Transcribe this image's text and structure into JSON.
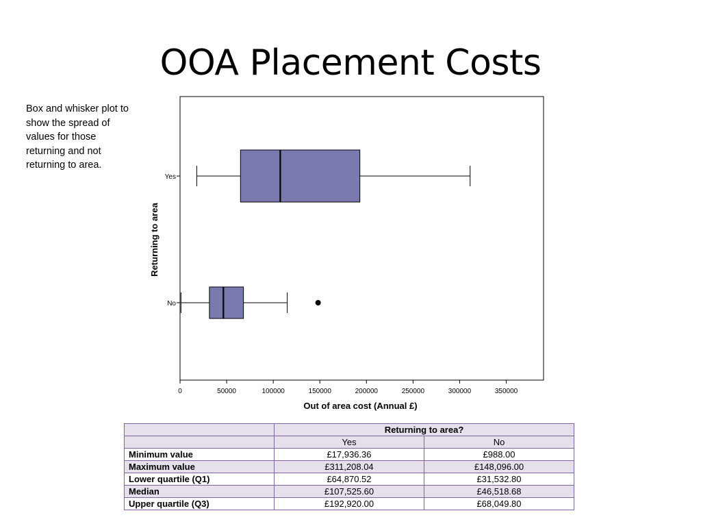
{
  "title": "OOA Placement Costs",
  "caption": "Box and whisker plot to show the spread of values for those returning and not returning to area.",
  "chart_data": {
    "type": "boxplot",
    "orientation": "horizontal",
    "xlabel": "Out of area cost (Annual £)",
    "ylabel": "Returning to area",
    "xlim": [
      0,
      390000
    ],
    "xticks": [
      0,
      50000,
      100000,
      150000,
      200000,
      250000,
      300000,
      350000
    ],
    "xtick_labels": [
      "0",
      "50000",
      "100000",
      "150000",
      "200000",
      "250000",
      "300000",
      "350000"
    ],
    "categories": [
      "Yes",
      "No"
    ],
    "boxes": [
      {
        "category": "Yes",
        "min": 17936.36,
        "q1": 64870.52,
        "median": 107525.6,
        "q3": 192920.0,
        "max": 311208.04,
        "outliers": []
      },
      {
        "category": "No",
        "min": 988.0,
        "q1": 31532.8,
        "median": 46518.68,
        "q3": 68049.8,
        "max": 115000,
        "outliers": [
          148096.0
        ]
      }
    ],
    "box_color": "#7b7aaf",
    "grid": false
  },
  "table": {
    "group_header": "Returning to area?",
    "columns": [
      "Yes",
      "No"
    ],
    "rows": [
      {
        "label": "Minimum value",
        "yes": "£17,936.36",
        "no": "£988.00"
      },
      {
        "label": "Maximum value",
        "yes": "£311,208.04",
        "no": "£148,096.00"
      },
      {
        "label": "Lower quartile (Q1)",
        "yes": "£64,870.52",
        "no": "£31,532.80"
      },
      {
        "label": "Median",
        "yes": "£107,525.60",
        "no": "£46,518.68"
      },
      {
        "label": "Upper quartile (Q3)",
        "yes": "£192,920.00",
        "no": "£68,049.80"
      }
    ]
  }
}
